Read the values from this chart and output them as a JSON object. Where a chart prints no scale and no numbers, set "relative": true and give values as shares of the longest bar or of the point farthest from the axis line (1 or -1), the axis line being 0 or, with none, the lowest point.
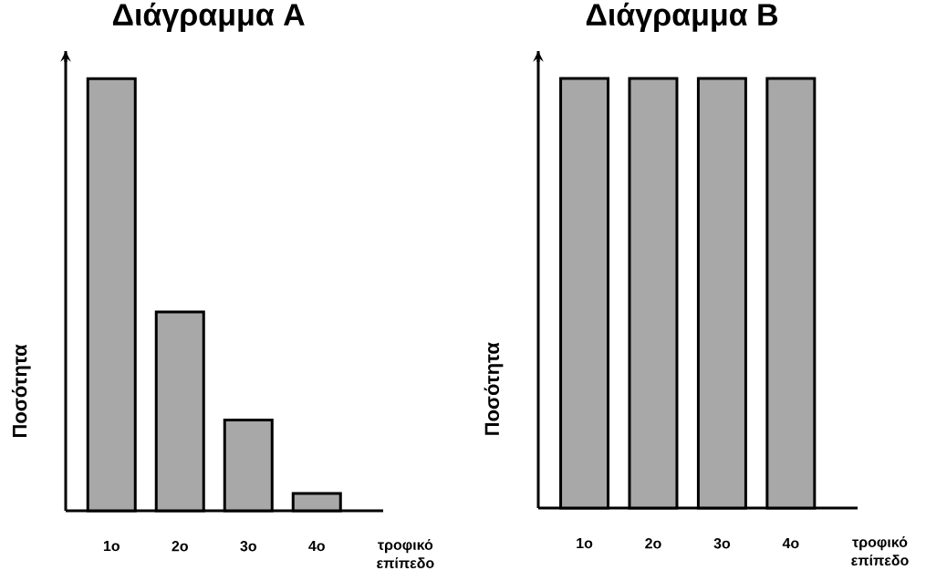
{
  "chart_data": [
    {
      "type": "bar",
      "title": "Διάγραμμα Α",
      "ylabel": "Ποσότητα",
      "xlabel": "τροφικό επίπεδο",
      "categories": [
        "1o",
        "2o",
        "3o",
        "4o"
      ],
      "values": [
        1,
        0.46,
        0.21,
        0.04
      ],
      "color": "#a8a8a8",
      "relative": true
    },
    {
      "type": "bar",
      "title": "Διάγραμμα Β",
      "ylabel": "Ποσότητα",
      "xlabel": "τροφικό επίπεδο",
      "categories": [
        "1o",
        "2o",
        "3o",
        "4o"
      ],
      "values": [
        1,
        1,
        1,
        1
      ],
      "color": "#a8a8a8",
      "relative": true
    }
  ]
}
